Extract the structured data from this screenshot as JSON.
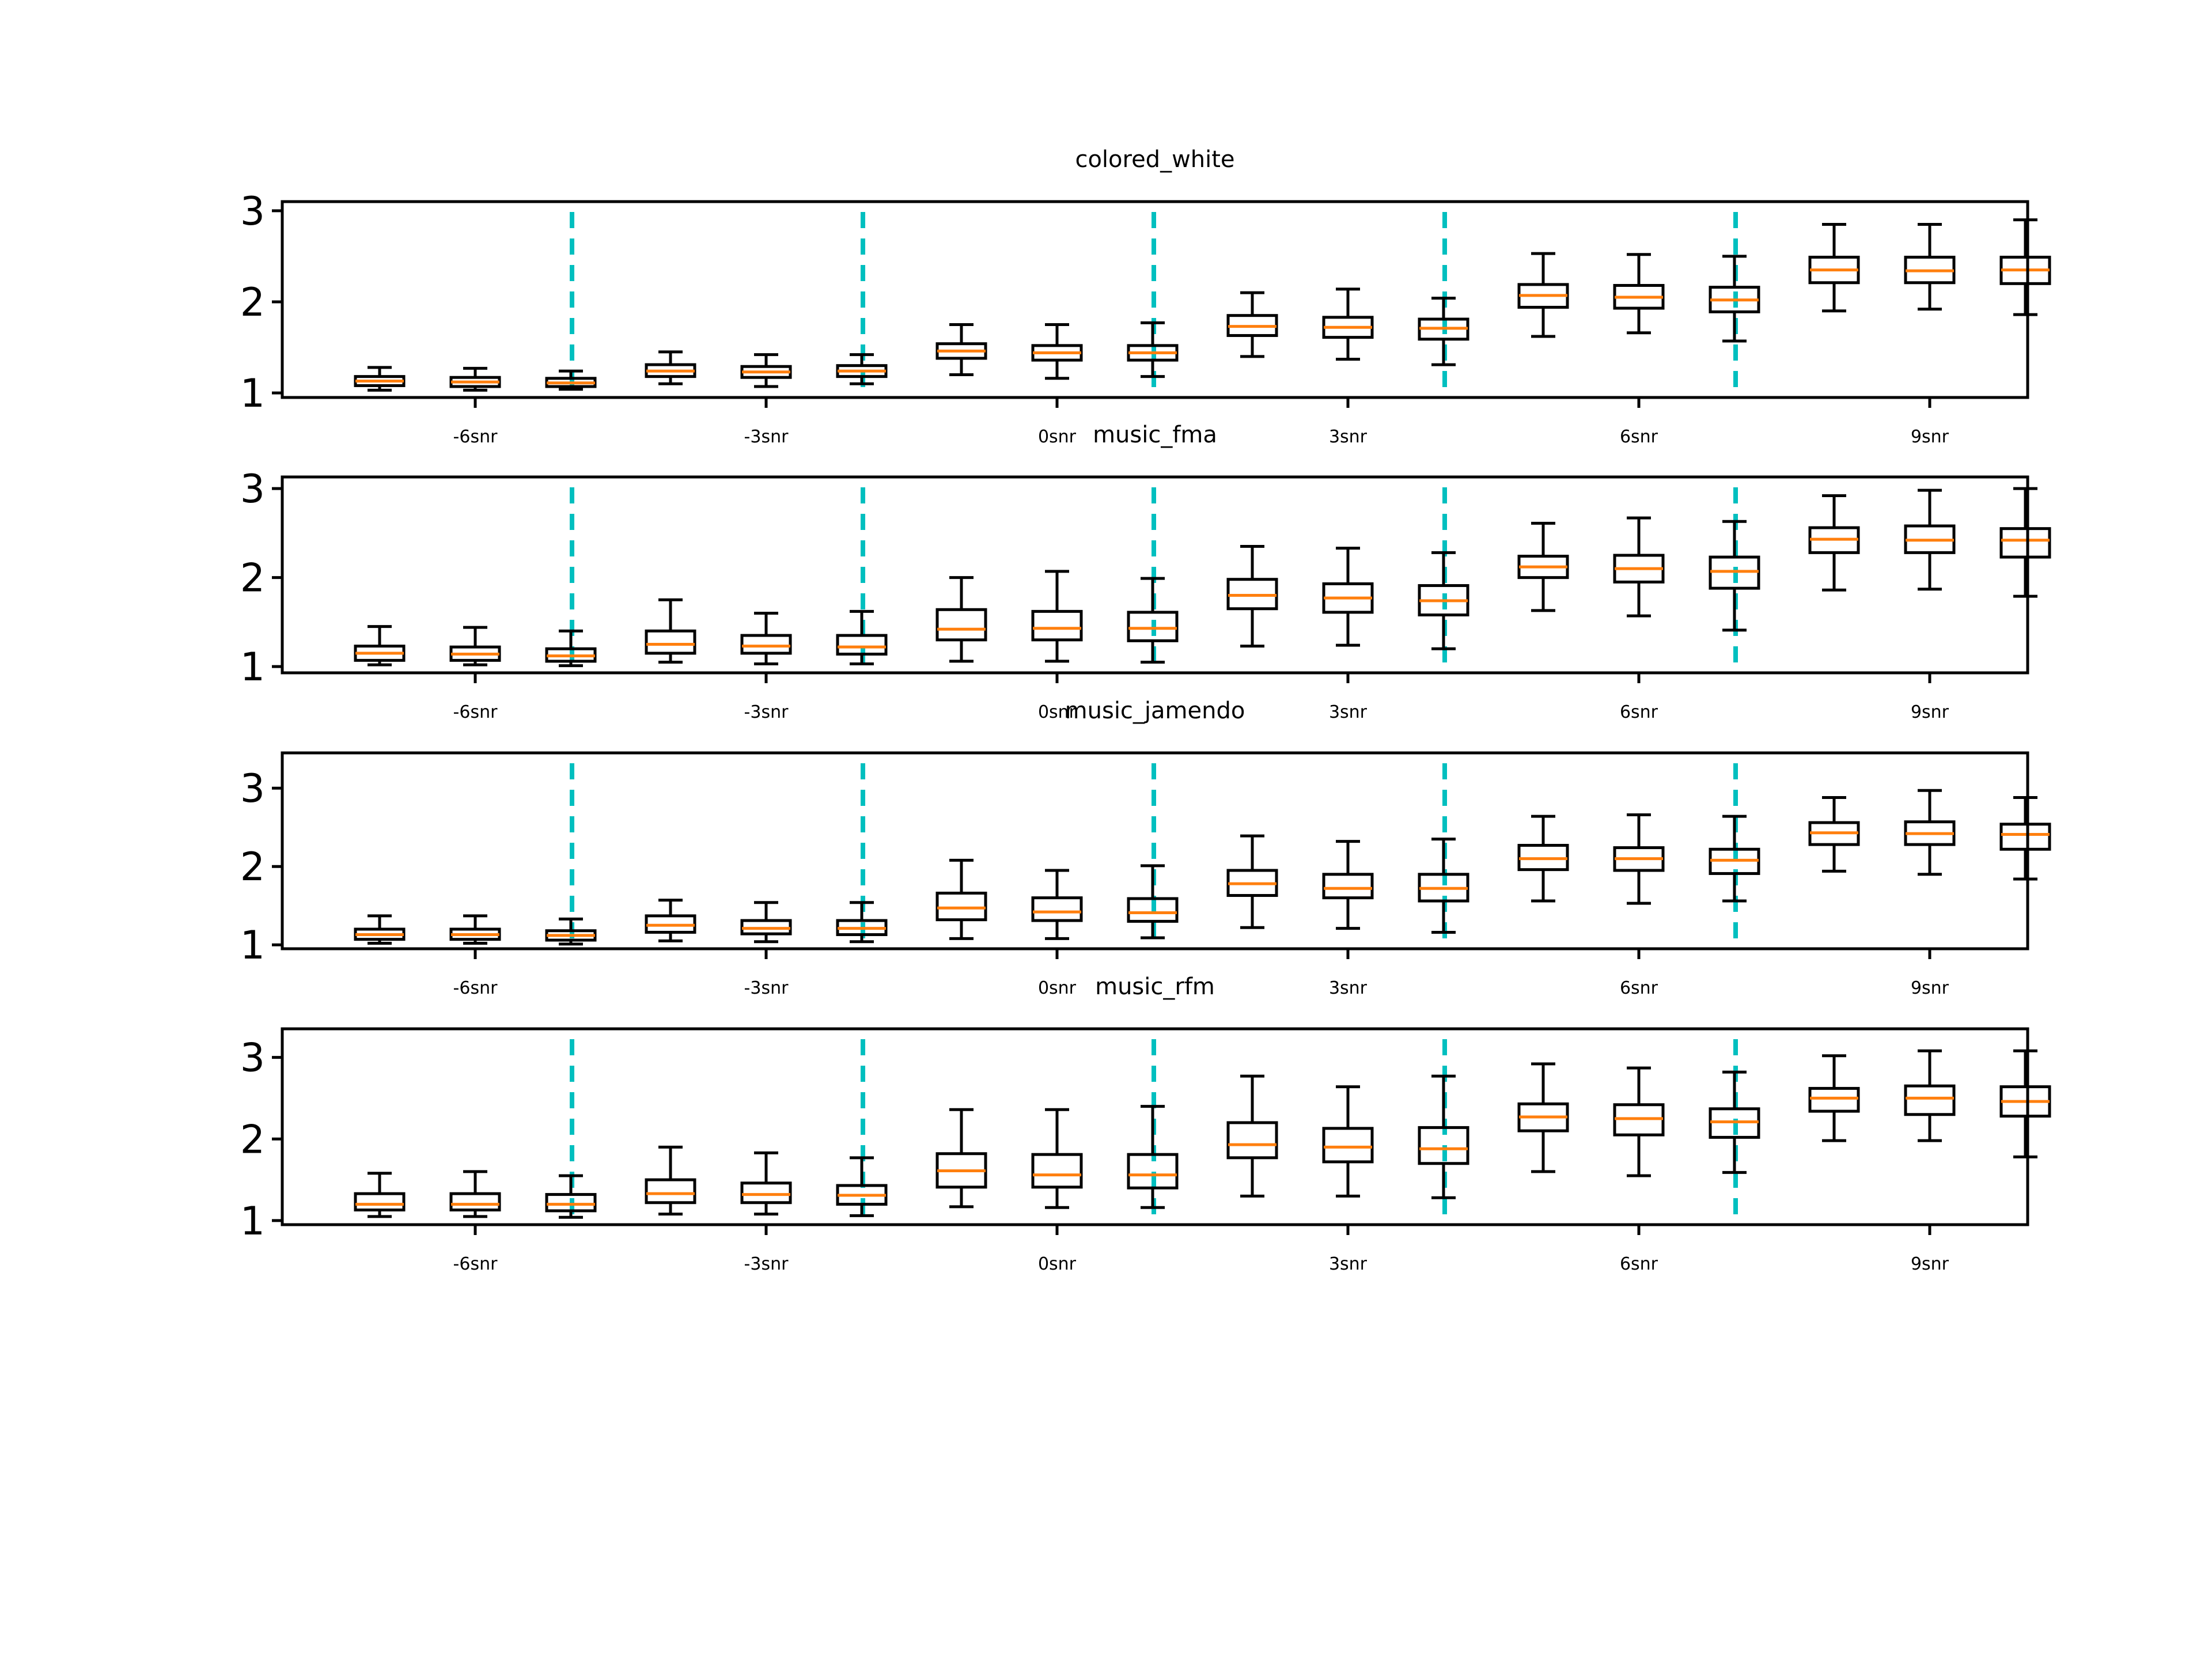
{
  "colors": {
    "box": "#000000",
    "median": "#ff7f0e",
    "divider": "#00bfbf",
    "background": "#ffffff"
  },
  "chart_data": [
    {
      "type": "boxplot",
      "title": "colored_white",
      "x_ticks": [
        "-6snr",
        "-3snr",
        "0snr",
        "3snr",
        "6snr",
        "9snr"
      ],
      "y_ticks": [
        "1",
        "2",
        "3"
      ],
      "ylim": [
        0.95,
        3.1
      ],
      "groups_per_tick": 3,
      "boxes": [
        {
          "whislo": 1.03,
          "q1": 1.08,
          "med": 1.13,
          "q3": 1.18,
          "whishi": 1.28
        },
        {
          "whislo": 1.03,
          "q1": 1.07,
          "med": 1.12,
          "q3": 1.17,
          "whishi": 1.27
        },
        {
          "whislo": 1.04,
          "q1": 1.07,
          "med": 1.11,
          "q3": 1.16,
          "whishi": 1.24
        },
        {
          "whislo": 1.1,
          "q1": 1.18,
          "med": 1.24,
          "q3": 1.31,
          "whishi": 1.45
        },
        {
          "whislo": 1.07,
          "q1": 1.17,
          "med": 1.23,
          "q3": 1.29,
          "whishi": 1.42
        },
        {
          "whislo": 1.1,
          "q1": 1.18,
          "med": 1.24,
          "q3": 1.3,
          "whishi": 1.42
        },
        {
          "whislo": 1.2,
          "q1": 1.38,
          "med": 1.46,
          "q3": 1.54,
          "whishi": 1.75
        },
        {
          "whislo": 1.16,
          "q1": 1.36,
          "med": 1.44,
          "q3": 1.52,
          "whishi": 1.75
        },
        {
          "whislo": 1.18,
          "q1": 1.36,
          "med": 1.44,
          "q3": 1.52,
          "whishi": 1.77
        },
        {
          "whislo": 1.4,
          "q1": 1.63,
          "med": 1.73,
          "q3": 1.85,
          "whishi": 2.1
        },
        {
          "whislo": 1.37,
          "q1": 1.61,
          "med": 1.72,
          "q3": 1.83,
          "whishi": 2.14
        },
        {
          "whislo": 1.31,
          "q1": 1.59,
          "med": 1.71,
          "q3": 1.81,
          "whishi": 2.04
        },
        {
          "whislo": 1.62,
          "q1": 1.94,
          "med": 2.07,
          "q3": 2.19,
          "whishi": 2.53
        },
        {
          "whislo": 1.66,
          "q1": 1.93,
          "med": 2.05,
          "q3": 2.18,
          "whishi": 2.52
        },
        {
          "whislo": 1.57,
          "q1": 1.89,
          "med": 2.02,
          "q3": 2.16,
          "whishi": 2.5
        },
        {
          "whislo": 1.9,
          "q1": 2.21,
          "med": 2.35,
          "q3": 2.49,
          "whishi": 2.85
        },
        {
          "whislo": 1.92,
          "q1": 2.21,
          "med": 2.34,
          "q3": 2.49,
          "whishi": 2.85
        },
        {
          "whislo": 1.86,
          "q1": 2.2,
          "med": 2.35,
          "q3": 2.49,
          "whishi": 2.9
        }
      ]
    },
    {
      "type": "boxplot",
      "title": "music_fma",
      "x_ticks": [
        "-6snr",
        "-3snr",
        "0snr",
        "3snr",
        "6snr",
        "9snr"
      ],
      "y_ticks": [
        "1",
        "2",
        "3"
      ],
      "ylim": [
        0.93,
        3.13
      ],
      "groups_per_tick": 3,
      "boxes": [
        {
          "whislo": 1.02,
          "q1": 1.07,
          "med": 1.15,
          "q3": 1.23,
          "whishi": 1.45
        },
        {
          "whislo": 1.02,
          "q1": 1.07,
          "med": 1.14,
          "q3": 1.22,
          "whishi": 1.44
        },
        {
          "whislo": 1.01,
          "q1": 1.06,
          "med": 1.12,
          "q3": 1.2,
          "whishi": 1.4
        },
        {
          "whislo": 1.05,
          "q1": 1.15,
          "med": 1.25,
          "q3": 1.4,
          "whishi": 1.75
        },
        {
          "whislo": 1.03,
          "q1": 1.15,
          "med": 1.23,
          "q3": 1.35,
          "whishi": 1.6
        },
        {
          "whislo": 1.03,
          "q1": 1.14,
          "med": 1.22,
          "q3": 1.35,
          "whishi": 1.62
        },
        {
          "whislo": 1.06,
          "q1": 1.3,
          "med": 1.42,
          "q3": 1.64,
          "whishi": 2.0
        },
        {
          "whislo": 1.06,
          "q1": 1.3,
          "med": 1.43,
          "q3": 1.62,
          "whishi": 2.07
        },
        {
          "whislo": 1.05,
          "q1": 1.29,
          "med": 1.43,
          "q3": 1.61,
          "whishi": 1.99
        },
        {
          "whislo": 1.23,
          "q1": 1.65,
          "med": 1.8,
          "q3": 1.98,
          "whishi": 2.35
        },
        {
          "whislo": 1.24,
          "q1": 1.61,
          "med": 1.77,
          "q3": 1.93,
          "whishi": 2.33
        },
        {
          "whislo": 1.2,
          "q1": 1.58,
          "med": 1.74,
          "q3": 1.91,
          "whishi": 2.28
        },
        {
          "whislo": 1.63,
          "q1": 2.0,
          "med": 2.12,
          "q3": 2.24,
          "whishi": 2.61
        },
        {
          "whislo": 1.57,
          "q1": 1.95,
          "med": 2.1,
          "q3": 2.25,
          "whishi": 2.67
        },
        {
          "whislo": 1.41,
          "q1": 1.88,
          "med": 2.07,
          "q3": 2.23,
          "whishi": 2.63
        },
        {
          "whislo": 1.86,
          "q1": 2.28,
          "med": 2.43,
          "q3": 2.56,
          "whishi": 2.92
        },
        {
          "whislo": 1.87,
          "q1": 2.28,
          "med": 2.42,
          "q3": 2.58,
          "whishi": 2.98
        },
        {
          "whislo": 1.79,
          "q1": 2.23,
          "med": 2.42,
          "q3": 2.55,
          "whishi": 3.0
        }
      ]
    },
    {
      "type": "boxplot",
      "title": "music_jamendo",
      "x_ticks": [
        "-6snr",
        "-3snr",
        "0snr",
        "3snr",
        "6snr",
        "9snr"
      ],
      "y_ticks": [
        "1",
        "2",
        "3"
      ],
      "ylim": [
        0.95,
        3.45
      ],
      "groups_per_tick": 3,
      "boxes": [
        {
          "whislo": 1.02,
          "q1": 1.07,
          "med": 1.13,
          "q3": 1.2,
          "whishi": 1.37
        },
        {
          "whislo": 1.02,
          "q1": 1.07,
          "med": 1.13,
          "q3": 1.2,
          "whishi": 1.37
        },
        {
          "whislo": 1.01,
          "q1": 1.06,
          "med": 1.12,
          "q3": 1.18,
          "whishi": 1.33
        },
        {
          "whislo": 1.05,
          "q1": 1.16,
          "med": 1.25,
          "q3": 1.37,
          "whishi": 1.57
        },
        {
          "whislo": 1.04,
          "q1": 1.14,
          "med": 1.21,
          "q3": 1.31,
          "whishi": 1.54
        },
        {
          "whislo": 1.04,
          "q1": 1.13,
          "med": 1.21,
          "q3": 1.31,
          "whishi": 1.54
        },
        {
          "whislo": 1.08,
          "q1": 1.32,
          "med": 1.47,
          "q3": 1.66,
          "whishi": 2.08
        },
        {
          "whislo": 1.08,
          "q1": 1.31,
          "med": 1.42,
          "q3": 1.6,
          "whishi": 1.95
        },
        {
          "whislo": 1.09,
          "q1": 1.3,
          "med": 1.41,
          "q3": 1.59,
          "whishi": 2.01
        },
        {
          "whislo": 1.22,
          "q1": 1.63,
          "med": 1.78,
          "q3": 1.95,
          "whishi": 2.39
        },
        {
          "whislo": 1.21,
          "q1": 1.6,
          "med": 1.72,
          "q3": 1.9,
          "whishi": 2.32
        },
        {
          "whislo": 1.16,
          "q1": 1.56,
          "med": 1.72,
          "q3": 1.9,
          "whishi": 2.35
        },
        {
          "whislo": 1.56,
          "q1": 1.96,
          "med": 2.1,
          "q3": 2.27,
          "whishi": 2.64
        },
        {
          "whislo": 1.53,
          "q1": 1.95,
          "med": 2.1,
          "q3": 2.24,
          "whishi": 2.66
        },
        {
          "whislo": 1.56,
          "q1": 1.91,
          "med": 2.08,
          "q3": 2.22,
          "whishi": 2.64
        },
        {
          "whislo": 1.94,
          "q1": 2.28,
          "med": 2.43,
          "q3": 2.56,
          "whishi": 2.88
        },
        {
          "whislo": 1.9,
          "q1": 2.28,
          "med": 2.42,
          "q3": 2.57,
          "whishi": 2.97
        },
        {
          "whislo": 1.84,
          "q1": 2.22,
          "med": 2.41,
          "q3": 2.54,
          "whishi": 2.88
        }
      ]
    },
    {
      "type": "boxplot",
      "title": "music_rfm",
      "x_ticks": [
        "-6snr",
        "-3snr",
        "0snr",
        "3snr",
        "6snr",
        "9snr"
      ],
      "y_ticks": [
        "1",
        "2",
        "3"
      ],
      "ylim": [
        0.95,
        3.35
      ],
      "groups_per_tick": 3,
      "boxes": [
        {
          "whislo": 1.05,
          "q1": 1.13,
          "med": 1.2,
          "q3": 1.33,
          "whishi": 1.58
        },
        {
          "whislo": 1.05,
          "q1": 1.13,
          "med": 1.2,
          "q3": 1.33,
          "whishi": 1.6
        },
        {
          "whislo": 1.04,
          "q1": 1.12,
          "med": 1.2,
          "q3": 1.32,
          "whishi": 1.55
        },
        {
          "whislo": 1.08,
          "q1": 1.22,
          "med": 1.33,
          "q3": 1.5,
          "whishi": 1.9
        },
        {
          "whislo": 1.08,
          "q1": 1.22,
          "med": 1.32,
          "q3": 1.46,
          "whishi": 1.83
        },
        {
          "whislo": 1.06,
          "q1": 1.2,
          "med": 1.31,
          "q3": 1.43,
          "whishi": 1.77
        },
        {
          "whislo": 1.17,
          "q1": 1.41,
          "med": 1.61,
          "q3": 1.82,
          "whishi": 2.36
        },
        {
          "whislo": 1.16,
          "q1": 1.41,
          "med": 1.56,
          "q3": 1.81,
          "whishi": 2.36
        },
        {
          "whislo": 1.16,
          "q1": 1.4,
          "med": 1.56,
          "q3": 1.81,
          "whishi": 2.4
        },
        {
          "whislo": 1.3,
          "q1": 1.77,
          "med": 1.93,
          "q3": 2.2,
          "whishi": 2.77
        },
        {
          "whislo": 1.3,
          "q1": 1.72,
          "med": 1.9,
          "q3": 2.13,
          "whishi": 2.64
        },
        {
          "whislo": 1.28,
          "q1": 1.7,
          "med": 1.88,
          "q3": 2.14,
          "whishi": 2.77
        },
        {
          "whislo": 1.6,
          "q1": 2.1,
          "med": 2.27,
          "q3": 2.43,
          "whishi": 2.92
        },
        {
          "whislo": 1.55,
          "q1": 2.05,
          "med": 2.25,
          "q3": 2.42,
          "whishi": 2.87
        },
        {
          "whislo": 1.59,
          "q1": 2.02,
          "med": 2.21,
          "q3": 2.37,
          "whishi": 2.82
        },
        {
          "whislo": 1.98,
          "q1": 2.34,
          "med": 2.5,
          "q3": 2.62,
          "whishi": 3.02
        },
        {
          "whislo": 1.98,
          "q1": 2.3,
          "med": 2.5,
          "q3": 2.65,
          "whishi": 3.08
        },
        {
          "whislo": 1.78,
          "q1": 2.28,
          "med": 2.46,
          "q3": 2.64,
          "whishi": 3.08
        }
      ]
    }
  ]
}
